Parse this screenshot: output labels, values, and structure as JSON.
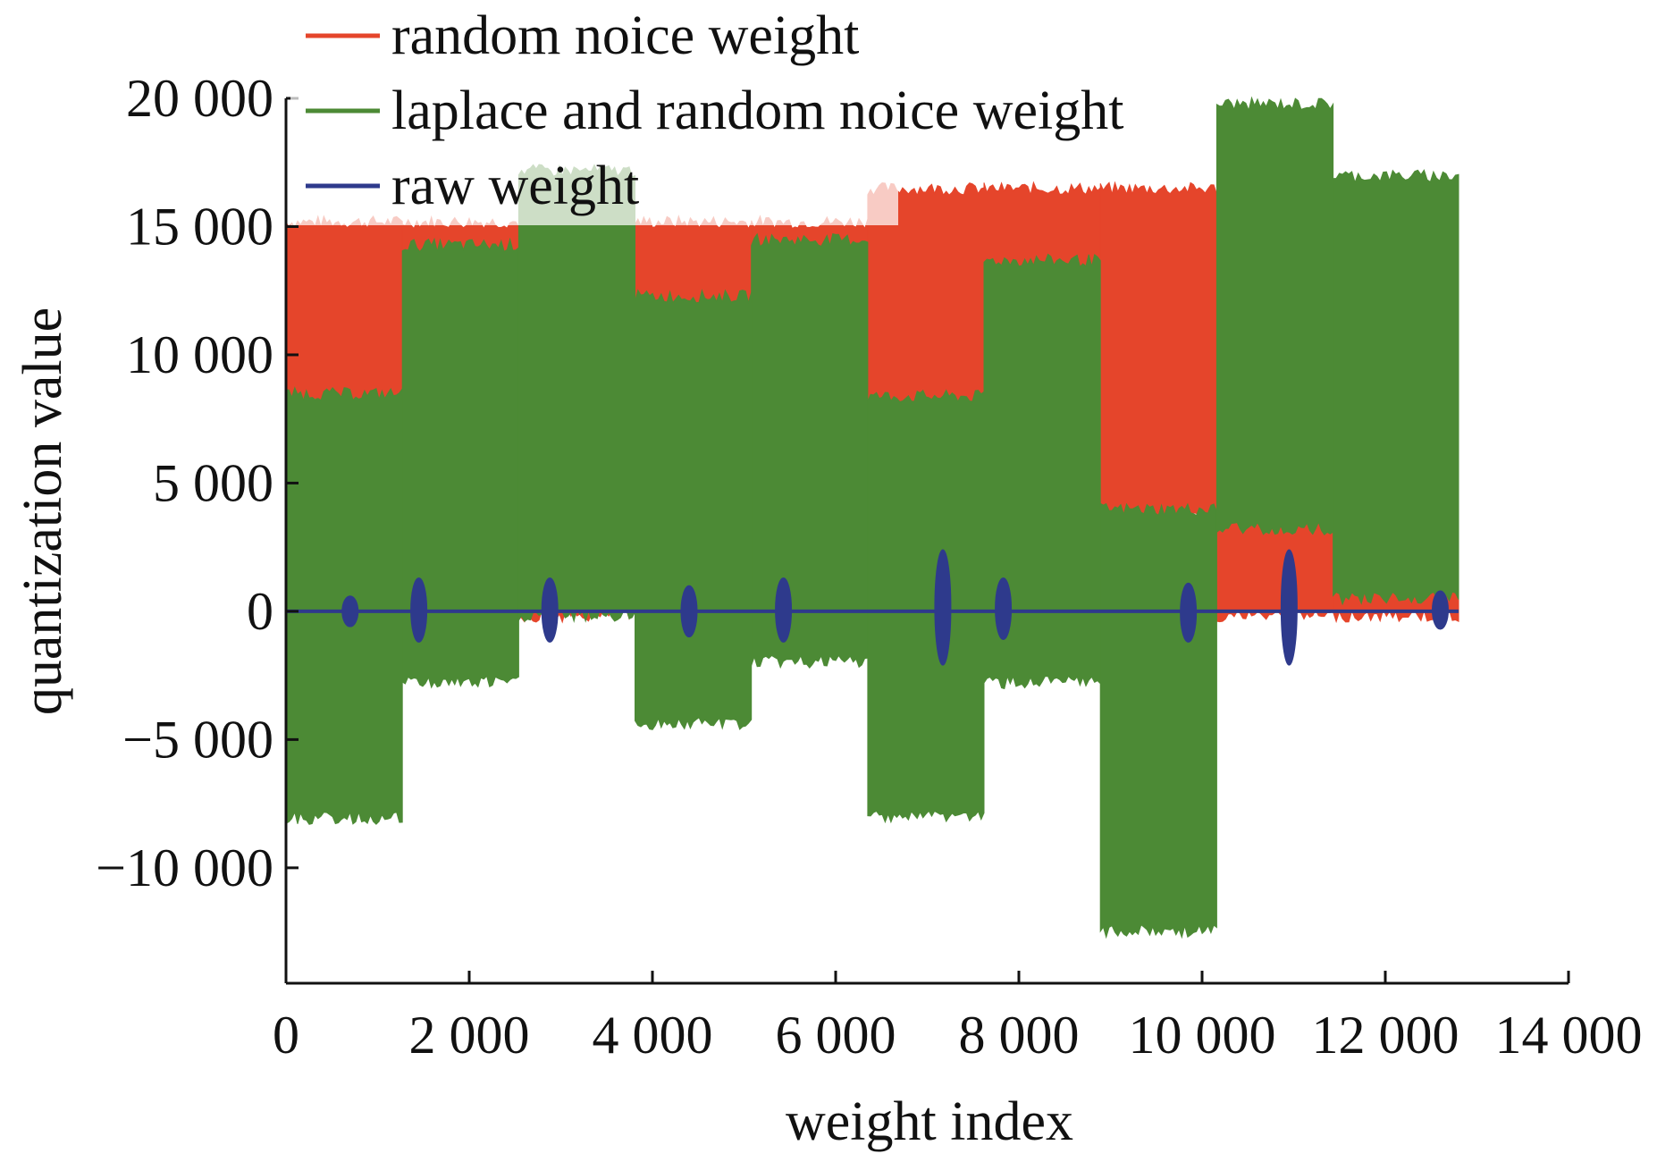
{
  "chart_data": {
    "type": "area",
    "title": "",
    "xlabel": "weight index",
    "ylabel": "quantization value",
    "xlim": [
      0,
      14000
    ],
    "ylim": [
      -14500,
      20000
    ],
    "x_ticks": [
      0,
      2000,
      4000,
      6000,
      8000,
      10000,
      12000,
      14000
    ],
    "x_tick_labels": [
      "0",
      "2 000",
      "4 000",
      "6 000",
      "8 000",
      "10 000",
      "12 000",
      "14 000"
    ],
    "y_ticks": [
      -10000,
      -5000,
      0,
      5000,
      10000,
      15000,
      20000
    ],
    "y_tick_labels": [
      "−10 000",
      "−5 000",
      "0",
      "5 000",
      "10 000",
      "15 000",
      "20 000"
    ],
    "grid": false,
    "legend_position": "top-left",
    "series": [
      {
        "name": "random noice weight",
        "color": "#e5452b",
        "note_style": "filled band between low and high envelope",
        "segments": [
          {
            "x": [
              0,
              1270
            ],
            "low": 8300,
            "high": 15000
          },
          {
            "x": [
              1270,
              2540
            ],
            "low": 13700,
            "high": 15000
          },
          {
            "x": [
              2540,
              3810
            ],
            "low": 0,
            "high": 1000
          },
          {
            "x": [
              3810,
              5080
            ],
            "low": 12000,
            "high": 15000
          },
          {
            "x": [
              5080,
              6350
            ],
            "low": 14300,
            "high": 15000
          },
          {
            "x": [
              6350,
              7620
            ],
            "low": 8200,
            "high": 16300
          },
          {
            "x": [
              7620,
              8890
            ],
            "low": 13500,
            "high": 16300
          },
          {
            "x": [
              8890,
              10160
            ],
            "low": 3800,
            "high": 16300
          },
          {
            "x": [
              10160,
              11430
            ],
            "low": 0,
            "high": 3400
          },
          {
            "x": [
              11430,
              12800
            ],
            "low": 0,
            "high": 700
          }
        ]
      },
      {
        "name": "laplace and random noice weight",
        "color": "#4c8a35",
        "note_style": "filled band between low and high envelope",
        "segments": [
          {
            "x": [
              0,
              1270
            ],
            "low": -7900,
            "high": 8300
          },
          {
            "x": [
              1270,
              2540
            ],
            "low": -2600,
            "high": 14100
          },
          {
            "x": [
              2540,
              3810
            ],
            "low": 0,
            "high": 17000
          },
          {
            "x": [
              3810,
              5080
            ],
            "low": -4200,
            "high": 12100
          },
          {
            "x": [
              5080,
              6350
            ],
            "low": -1800,
            "high": 14300
          },
          {
            "x": [
              6350,
              7620
            ],
            "low": -7800,
            "high": 8200
          },
          {
            "x": [
              7620,
              8890
            ],
            "low": -2600,
            "high": 13500
          },
          {
            "x": [
              8890,
              10160
            ],
            "low": -12300,
            "high": 3800
          },
          {
            "x": [
              10160,
              11430
            ],
            "low": 3400,
            "high": 19600
          },
          {
            "x": [
              11430,
              12800
            ],
            "low": 700,
            "high": 16800
          }
        ]
      },
      {
        "name": "raw weight",
        "color": "#2e3a8c",
        "note_style": "baseline near 0 with spikes",
        "baseline": 0,
        "x_range": [
          0,
          12800
        ],
        "spikes": [
          {
            "x": 700,
            "low": -600,
            "high": 600
          },
          {
            "x": 1450,
            "low": -1200,
            "high": 1300
          },
          {
            "x": 2880,
            "low": -1200,
            "high": 1300
          },
          {
            "x": 4400,
            "low": -1000,
            "high": 1000
          },
          {
            "x": 5430,
            "low": -1200,
            "high": 1300
          },
          {
            "x": 7170,
            "low": -2100,
            "high": 2400
          },
          {
            "x": 7830,
            "low": -1100,
            "high": 1300
          },
          {
            "x": 9850,
            "low": -1200,
            "high": 1100
          },
          {
            "x": 10950,
            "low": -2100,
            "high": 2400
          },
          {
            "x": 12600,
            "low": -700,
            "high": 800
          }
        ]
      }
    ]
  }
}
